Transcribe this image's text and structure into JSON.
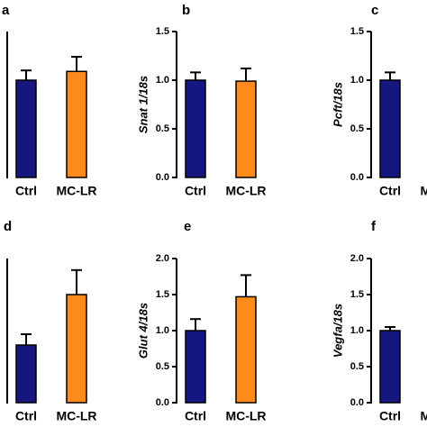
{
  "chart_data": [
    {
      "type": "bar",
      "panel": "a",
      "categories": [
        "Ctrl",
        "MC-LR"
      ],
      "values": [
        1.0,
        1.09
      ],
      "errors": [
        0.1,
        0.15
      ],
      "colors": [
        "#15167f",
        "#ff8a1c"
      ],
      "ylim": [
        0,
        1.5
      ]
    },
    {
      "type": "bar",
      "panel": "b",
      "ylabel": "Snat 1/18s",
      "categories": [
        "Ctrl",
        "MC-LR"
      ],
      "values": [
        1.0,
        0.99
      ],
      "errors": [
        0.08,
        0.13
      ],
      "colors": [
        "#15167f",
        "#ff8a1c"
      ],
      "ylim": [
        0,
        1.5
      ],
      "yticks": [
        {
          "value": 0,
          "label": "0.0"
        },
        {
          "value": 0.5,
          "label": "0.5"
        },
        {
          "value": 1,
          "label": "1.0"
        },
        {
          "value": 1.5,
          "label": "1.5"
        }
      ]
    },
    {
      "type": "bar",
      "panel": "c",
      "ylabel": "Pcft/18s",
      "categories": [
        "Ctrl",
        "MC-LR"
      ],
      "values": [
        1.0,
        null
      ],
      "errors": [
        0.08,
        null
      ],
      "colors": [
        "#15167f",
        "#ff8a1c"
      ],
      "ylim": [
        0,
        1.5
      ],
      "yticks": [
        {
          "value": 0,
          "label": "0.0"
        },
        {
          "value": 0.5,
          "label": "0.5"
        },
        {
          "value": 1,
          "label": "1.0"
        },
        {
          "value": 1.5,
          "label": "1.5"
        }
      ]
    },
    {
      "type": "bar",
      "panel": "d",
      "categories": [
        "Ctrl",
        "MC-LR"
      ],
      "values": [
        0.8,
        1.5
      ],
      "errors": [
        0.15,
        0.34
      ],
      "colors": [
        "#15167f",
        "#ff8a1c"
      ],
      "ylim": [
        0,
        2
      ]
    },
    {
      "type": "bar",
      "panel": "e",
      "ylabel": "Glut 4/18s",
      "categories": [
        "Ctrl",
        "MC-LR"
      ],
      "values": [
        1.0,
        1.47
      ],
      "errors": [
        0.16,
        0.3
      ],
      "colors": [
        "#15167f",
        "#ff8a1c"
      ],
      "ylim": [
        0,
        2
      ],
      "yticks": [
        {
          "value": 0,
          "label": "0.0"
        },
        {
          "value": 0.5,
          "label": "0.5"
        },
        {
          "value": 1,
          "label": "1.0"
        },
        {
          "value": 1.5,
          "label": "1.5"
        },
        {
          "value": 2,
          "label": "2.0"
        }
      ]
    },
    {
      "type": "bar",
      "panel": "f",
      "ylabel": "Vegfa/18s",
      "categories": [
        "Ctrl",
        "MC-LR"
      ],
      "values": [
        1.0,
        null
      ],
      "errors": [
        0.05,
        null
      ],
      "colors": [
        "#15167f",
        "#ff8a1c"
      ],
      "ylim": [
        0,
        2
      ],
      "yticks": [
        {
          "value": 0,
          "label": "0.0"
        },
        {
          "value": 0.5,
          "label": "0.5"
        },
        {
          "value": 1,
          "label": "1.0"
        },
        {
          "value": 1.5,
          "label": "1.5"
        },
        {
          "value": 2,
          "label": "2.0"
        }
      ]
    }
  ]
}
